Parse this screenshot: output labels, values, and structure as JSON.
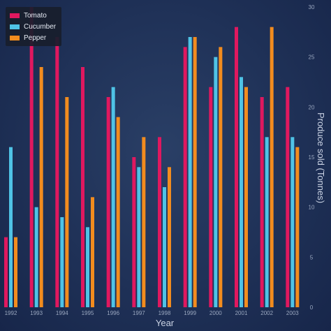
{
  "chart_data": {
    "type": "bar",
    "xlabel": "Year",
    "ylabel": "Produce sold (Tonnes)",
    "ylim": [
      0,
      30
    ],
    "y_ticks": [
      0,
      5,
      10,
      15,
      20,
      25,
      30
    ],
    "y_axis_side": "right",
    "grid": false,
    "legend_placement": "top-left",
    "categories": [
      "1992",
      "1993",
      "1994",
      "1995",
      "1996",
      "1997",
      "1998",
      "1999",
      "2000",
      "2001",
      "2002",
      "2003"
    ],
    "series": [
      {
        "name": "Tomato",
        "color": "#e0185f",
        "values": [
          7,
          30,
          27,
          24,
          21,
          15,
          17,
          26,
          22,
          28,
          21,
          22
        ]
      },
      {
        "name": "Cucumber",
        "color": "#4fc3e6",
        "values": [
          16,
          10,
          9,
          8,
          22,
          14,
          12,
          27,
          25,
          23,
          17,
          17
        ]
      },
      {
        "name": "Pepper",
        "color": "#f28c1e",
        "values": [
          7,
          24,
          21,
          11,
          19,
          17,
          14,
          27,
          26,
          22,
          28,
          16
        ]
      }
    ]
  }
}
